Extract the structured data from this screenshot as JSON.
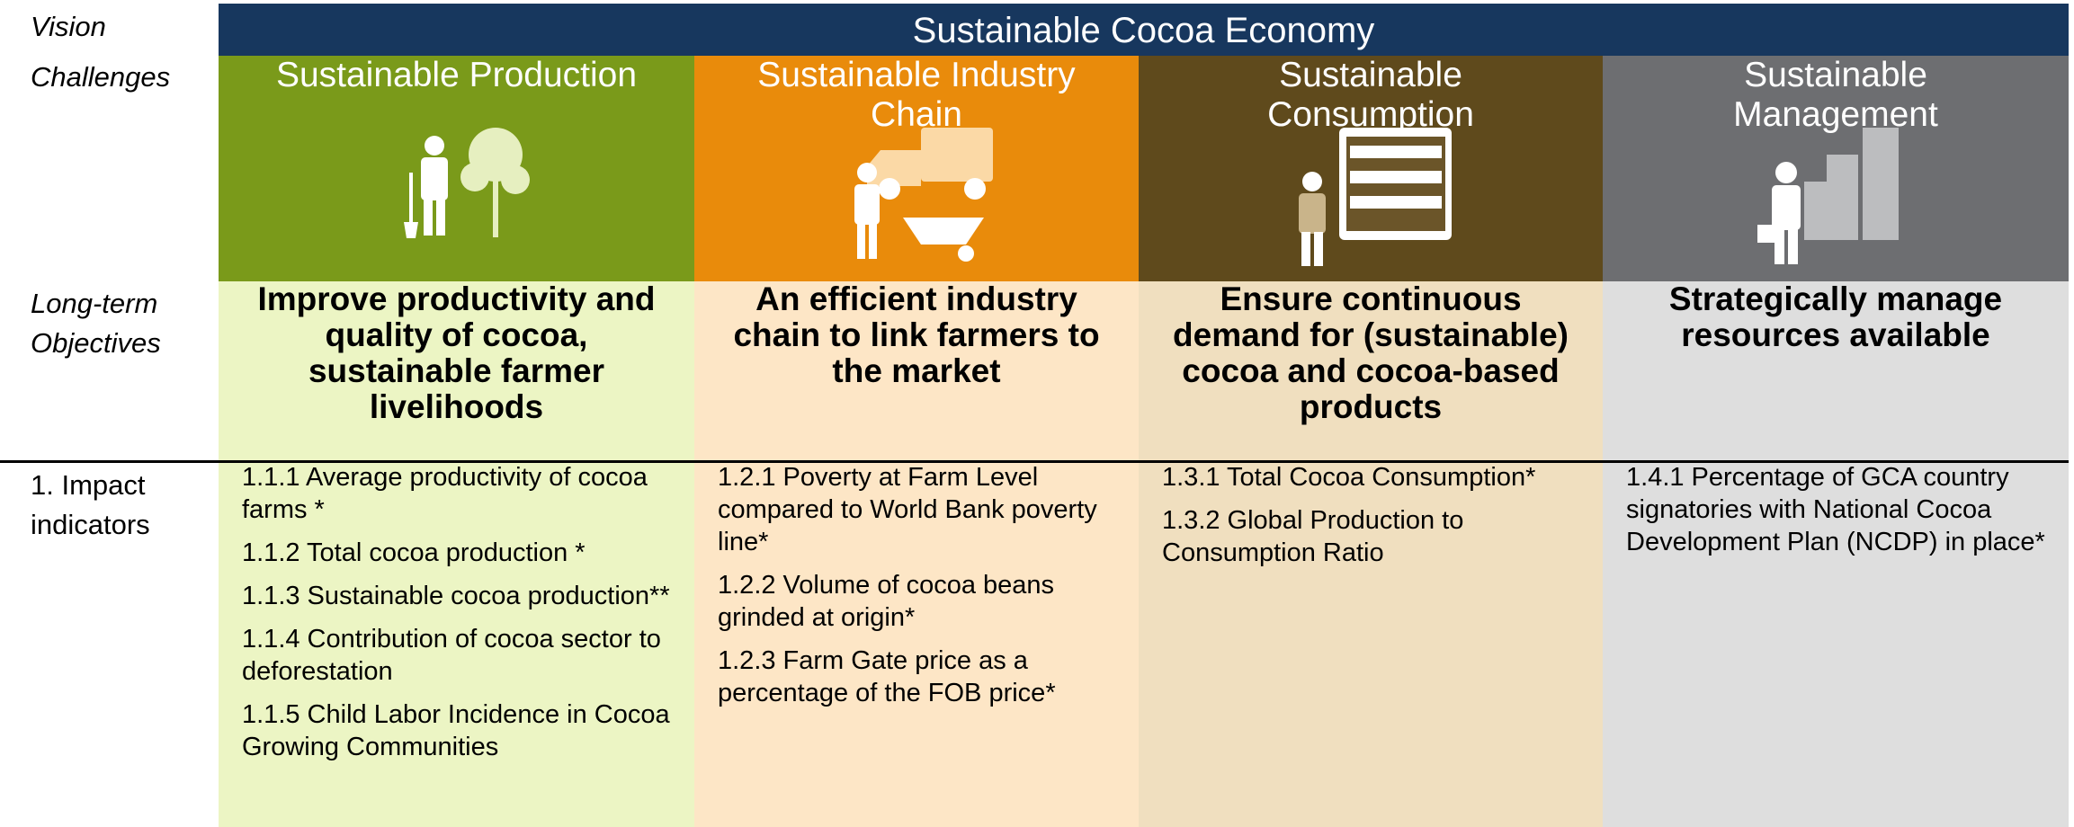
{
  "vision": {
    "label": "Vision",
    "title": "Sustainable Cocoa Economy"
  },
  "row_labels": {
    "challenges": "Challenges",
    "objectives": "Long-term Objectives",
    "indicators": "1. Impact indicators"
  },
  "columns": [
    {
      "challenge": "Sustainable Production",
      "objective": "Improve productivity and quality of cocoa, sustainable farmer livelihoods",
      "indicators": [
        "1.1.1 Average productivity of cocoa farms *",
        "1.1.2 Total cocoa production *",
        "1.1.3 Sustainable cocoa production**",
        "1.1.4 Contribution of cocoa sector to deforestation",
        "1.1.5 Child Labor Incidence in Cocoa Growing Communities"
      ]
    },
    {
      "challenge": "Sustainable Industry Chain",
      "objective": "An efficient industry chain to link farmers to the market",
      "indicators": [
        "1.2.1 Poverty at Farm Level compared to World Bank poverty line*",
        "1.2.2 Volume of cocoa beans grinded at origin*",
        "1.2.3 Farm Gate price as a percentage of the FOB price*"
      ]
    },
    {
      "challenge": "Sustainable Consumption",
      "objective": "Ensure continuous demand for (sustainable) cocoa and cocoa-based products",
      "indicators": [
        "1.3.1 Total Cocoa Consumption*",
        "1.3.2 Global Production to Consumption Ratio"
      ]
    },
    {
      "challenge": "Sustainable Management",
      "objective": "Strategically manage resources available",
      "indicators": [
        "1.4.1 Percentage of GCA country signatories with National Cocoa Development Plan (NCDP) in place*"
      ]
    }
  ]
}
